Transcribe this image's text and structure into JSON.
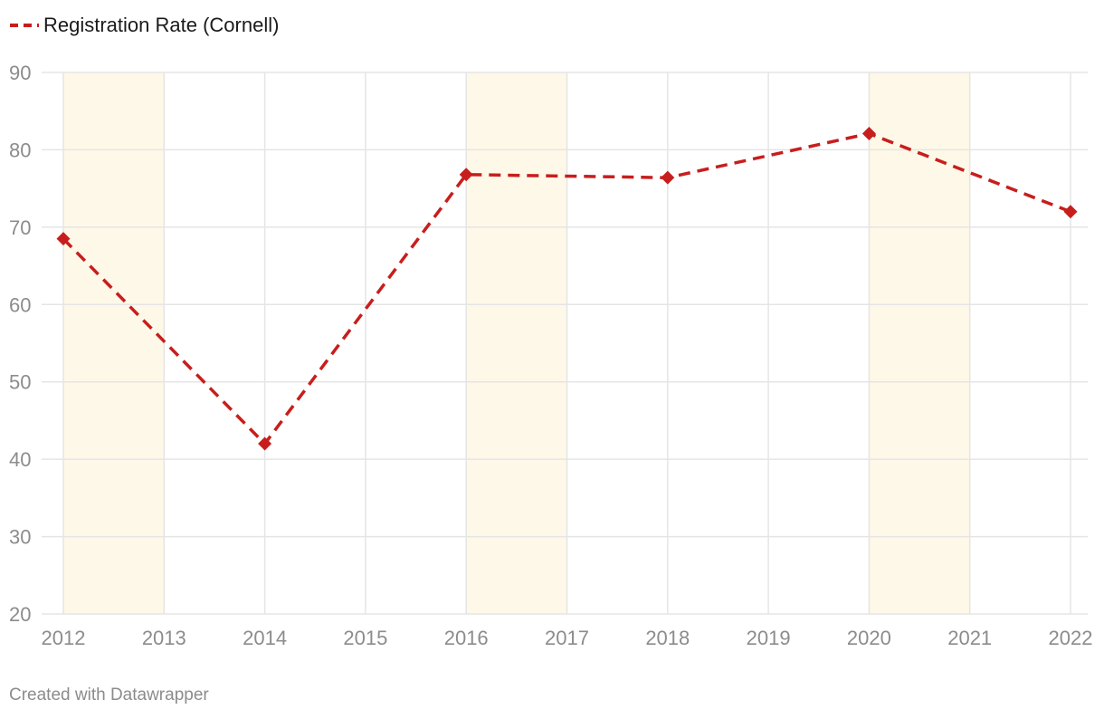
{
  "chart_data": {
    "type": "line",
    "title": "",
    "xlabel": "",
    "ylabel": "",
    "x": [
      2012,
      2013,
      2014,
      2015,
      2016,
      2017,
      2018,
      2019,
      2020,
      2021,
      2022
    ],
    "xticks": [
      "2012",
      "2013",
      "2014",
      "2015",
      "2016",
      "2017",
      "2018",
      "2019",
      "2020",
      "2021",
      "2022"
    ],
    "yticks": [
      "20",
      "30",
      "40",
      "50",
      "60",
      "70",
      "80",
      "90"
    ],
    "ylim": [
      20,
      90
    ],
    "xlim": [
      2012,
      2022
    ],
    "grid": true,
    "legend_position": "top-left",
    "series": [
      {
        "name": "Registration Rate (Cornell)",
        "color": "#c71e1d",
        "line_style": "dashed",
        "marker": "diamond",
        "points": [
          {
            "x": 2012,
            "y": 68.5
          },
          {
            "x": 2014,
            "y": 42
          },
          {
            "x": 2016,
            "y": 76.8
          },
          {
            "x": 2018,
            "y": 76.4
          },
          {
            "x": 2020,
            "y": 82.1
          },
          {
            "x": 2022,
            "y": 72
          }
        ]
      }
    ],
    "highlight_ranges": [
      {
        "from": 2012,
        "to": 2013,
        "color": "#fef8e8"
      },
      {
        "from": 2016,
        "to": 2017,
        "color": "#fef8e8"
      },
      {
        "from": 2020,
        "to": 2021,
        "color": "#fef8e8"
      }
    ]
  },
  "footer": {
    "credit": "Created with Datawrapper"
  }
}
